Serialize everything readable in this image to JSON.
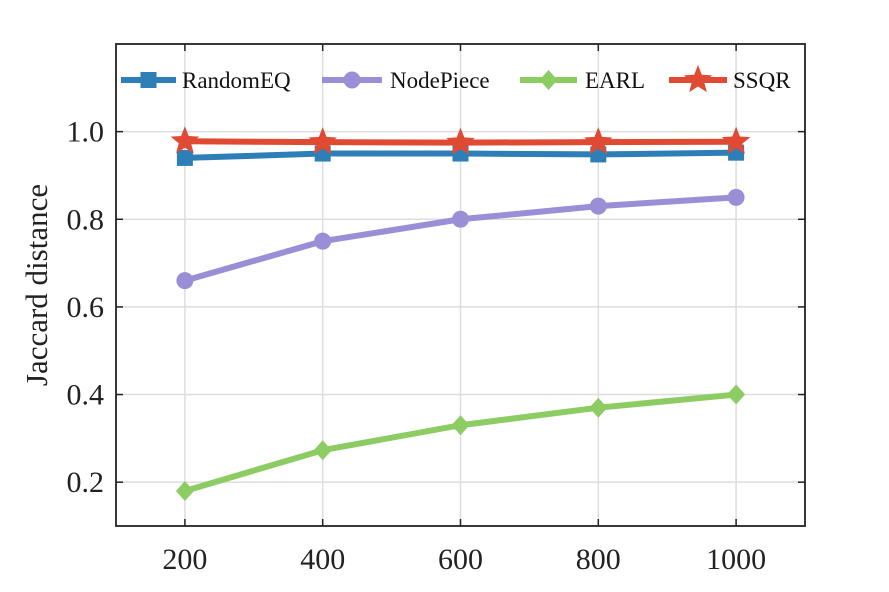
{
  "chart_data": {
    "type": "line",
    "title": "",
    "xlabel": "",
    "ylabel": "Jaccard distance",
    "x": [
      200,
      400,
      600,
      800,
      1000
    ],
    "xlim": [
      100,
      1100
    ],
    "ylim": [
      0.1,
      1.2
    ],
    "xticks": [
      "200",
      "400",
      "600",
      "800",
      "1000"
    ],
    "yticks": [
      "0.2",
      "0.4",
      "0.6",
      "0.8",
      "1.0"
    ],
    "ytick_values": [
      0.2,
      0.4,
      0.6,
      0.8,
      1.0
    ],
    "grid": true,
    "legend_position": "top",
    "series": [
      {
        "name": "RandomEQ",
        "values": [
          0.94,
          0.95,
          0.95,
          0.948,
          0.952
        ],
        "color": "#2e7fb8",
        "marker": "square"
      },
      {
        "name": "NodePiece",
        "values": [
          0.66,
          0.75,
          0.8,
          0.83,
          0.85
        ],
        "color": "#9a8fd6",
        "marker": "circle"
      },
      {
        "name": "EARL",
        "values": [
          0.18,
          0.273,
          0.33,
          0.37,
          0.4
        ],
        "color": "#8ccc63",
        "marker": "diamond"
      },
      {
        "name": "SSQR",
        "values": [
          0.978,
          0.976,
          0.975,
          0.976,
          0.977
        ],
        "color": "#e04a33",
        "marker": "star"
      }
    ]
  }
}
